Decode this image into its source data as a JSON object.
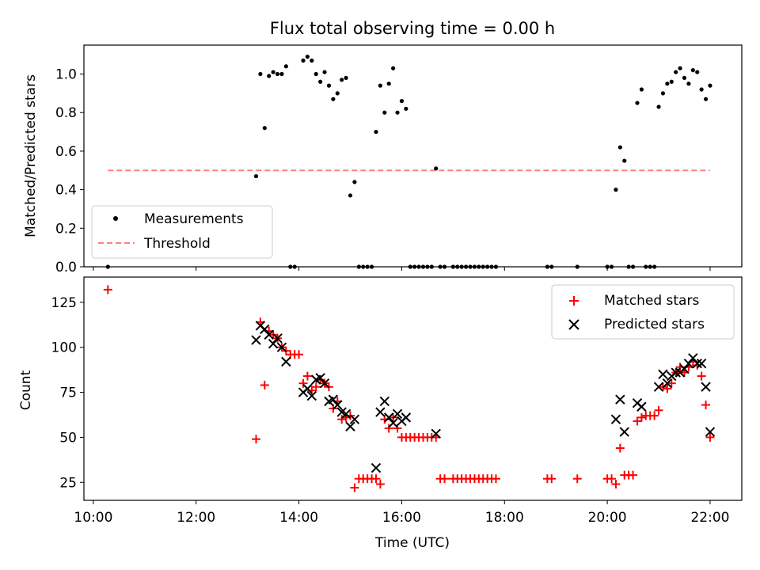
{
  "chart_data": [
    {
      "type": "scatter",
      "title": "Flux total observing time = 0.00 h",
      "xlabel": "",
      "ylabel": "Matched/Predicted stars",
      "xlim": [
        "09:49",
        "22:37"
      ],
      "ylim": [
        0,
        1.15
      ],
      "yticks": [
        "0.0",
        "0.2",
        "0.4",
        "0.6",
        "0.8",
        "1.0"
      ],
      "legend": {
        "placement": "lower-left",
        "entries": [
          "Measurements",
          "Threshold"
        ]
      },
      "series": [
        {
          "name": "Measurements",
          "marker": "dot",
          "color": "#000000",
          "points": [
            [
              "10:17",
              0
            ],
            [
              "13:10",
              0.47
            ],
            [
              "13:15",
              1.0
            ],
            [
              "13:20",
              0.72
            ],
            [
              "13:25",
              0.99
            ],
            [
              "13:30",
              1.01
            ],
            [
              "13:35",
              1.0
            ],
            [
              "13:40",
              1.0
            ],
            [
              "13:45",
              1.04
            ],
            [
              "13:50",
              0
            ],
            [
              "13:55",
              0
            ],
            [
              "14:05",
              1.07
            ],
            [
              "14:10",
              1.09
            ],
            [
              "14:15",
              1.07
            ],
            [
              "14:20",
              1.0
            ],
            [
              "14:25",
              0.96
            ],
            [
              "14:30",
              1.01
            ],
            [
              "14:35",
              0.94
            ],
            [
              "14:40",
              0.87
            ],
            [
              "14:45",
              0.9
            ],
            [
              "14:50",
              0.97
            ],
            [
              "14:55",
              0.98
            ],
            [
              "15:00",
              0.37
            ],
            [
              "15:05",
              0.44
            ],
            [
              "15:10",
              0
            ],
            [
              "15:15",
              0
            ],
            [
              "15:20",
              0
            ],
            [
              "15:25",
              0
            ],
            [
              "15:30",
              0.7
            ],
            [
              "15:35",
              0.94
            ],
            [
              "15:40",
              0.8
            ],
            [
              "15:45",
              0.95
            ],
            [
              "15:50",
              1.03
            ],
            [
              "15:55",
              0.8
            ],
            [
              "16:00",
              0.86
            ],
            [
              "16:05",
              0.82
            ],
            [
              "16:10",
              0
            ],
            [
              "16:15",
              0
            ],
            [
              "16:20",
              0
            ],
            [
              "16:25",
              0
            ],
            [
              "16:30",
              0
            ],
            [
              "16:35",
              0
            ],
            [
              "16:40",
              0.51
            ],
            [
              "16:45",
              0
            ],
            [
              "16:50",
              0
            ],
            [
              "17:00",
              0
            ],
            [
              "17:05",
              0
            ],
            [
              "17:10",
              0
            ],
            [
              "17:15",
              0
            ],
            [
              "17:20",
              0
            ],
            [
              "17:25",
              0
            ],
            [
              "17:30",
              0
            ],
            [
              "17:35",
              0
            ],
            [
              "17:40",
              0
            ],
            [
              "17:45",
              0
            ],
            [
              "17:50",
              0
            ],
            [
              "18:50",
              0
            ],
            [
              "18:55",
              0
            ],
            [
              "19:25",
              0
            ],
            [
              "20:00",
              0
            ],
            [
              "20:05",
              0
            ],
            [
              "20:10",
              0.4
            ],
            [
              "20:15",
              0.62
            ],
            [
              "20:20",
              0.55
            ],
            [
              "20:25",
              0
            ],
            [
              "20:30",
              0
            ],
            [
              "20:35",
              0.85
            ],
            [
              "20:40",
              0.92
            ],
            [
              "20:45",
              0
            ],
            [
              "20:50",
              0
            ],
            [
              "20:55",
              0
            ],
            [
              "21:00",
              0.83
            ],
            [
              "21:05",
              0.9
            ],
            [
              "21:10",
              0.95
            ],
            [
              "21:15",
              0.96
            ],
            [
              "21:20",
              1.01
            ],
            [
              "21:25",
              1.03
            ],
            [
              "21:30",
              0.98
            ],
            [
              "21:35",
              0.95
            ],
            [
              "21:40",
              1.02
            ],
            [
              "21:45",
              1.01
            ],
            [
              "21:50",
              0.92
            ],
            [
              "21:55",
              0.87
            ],
            [
              "22:00",
              0.94
            ]
          ]
        },
        {
          "name": "Threshold",
          "marker": "dashed-line",
          "color": "#ff7f7f",
          "points": [
            [
              "10:17",
              0.5
            ],
            [
              "22:00",
              0.5
            ]
          ]
        }
      ]
    },
    {
      "type": "scatter",
      "title": "",
      "xlabel": "Time (UTC)",
      "ylabel": "Count",
      "xlim": [
        "09:49",
        "22:37"
      ],
      "ylim": [
        15,
        139
      ],
      "xticks": [
        "10:00",
        "12:00",
        "14:00",
        "16:00",
        "18:00",
        "20:00",
        "22:00"
      ],
      "yticks": [
        "25",
        "50",
        "75",
        "100",
        "125"
      ],
      "legend": {
        "placement": "top-right",
        "entries": [
          "Matched stars",
          "Predicted stars"
        ]
      },
      "series": [
        {
          "name": "Matched stars",
          "marker": "plus",
          "color": "#ff0000",
          "points": [
            [
              "10:17",
              132
            ],
            [
              "13:10",
              49
            ],
            [
              "13:15",
              114
            ],
            [
              "13:20",
              79
            ],
            [
              "13:25",
              109
            ],
            [
              "13:30",
              107
            ],
            [
              "13:35",
              105
            ],
            [
              "13:40",
              100
            ],
            [
              "13:45",
              98
            ],
            [
              "13:50",
              96
            ],
            [
              "13:55",
              96
            ],
            [
              "14:00",
              96
            ],
            [
              "14:05",
              80
            ],
            [
              "14:10",
              84
            ],
            [
              "14:15",
              76
            ],
            [
              "14:20",
              78
            ],
            [
              "14:25",
              82
            ],
            [
              "14:30",
              80
            ],
            [
              "14:35",
              78
            ],
            [
              "14:40",
              66
            ],
            [
              "14:45",
              70
            ],
            [
              "14:50",
              60
            ],
            [
              "14:55",
              61
            ],
            [
              "15:00",
              62
            ],
            [
              "15:05",
              22
            ],
            [
              "15:10",
              27
            ],
            [
              "15:15",
              27
            ],
            [
              "15:20",
              27
            ],
            [
              "15:25",
              27
            ],
            [
              "15:30",
              27
            ],
            [
              "15:35",
              24
            ],
            [
              "15:40",
              60
            ],
            [
              "15:45",
              55
            ],
            [
              "15:50",
              61
            ],
            [
              "15:55",
              55
            ],
            [
              "16:00",
              50
            ],
            [
              "16:05",
              50
            ],
            [
              "16:10",
              50
            ],
            [
              "16:15",
              50
            ],
            [
              "16:20",
              50
            ],
            [
              "16:25",
              50
            ],
            [
              "16:30",
              50
            ],
            [
              "16:35",
              50
            ],
            [
              "16:40",
              50
            ],
            [
              "16:45",
              27
            ],
            [
              "16:50",
              27
            ],
            [
              "17:00",
              27
            ],
            [
              "17:05",
              27
            ],
            [
              "17:10",
              27
            ],
            [
              "17:15",
              27
            ],
            [
              "17:20",
              27
            ],
            [
              "17:25",
              27
            ],
            [
              "17:30",
              27
            ],
            [
              "17:35",
              27
            ],
            [
              "17:40",
              27
            ],
            [
              "17:45",
              27
            ],
            [
              "17:50",
              27
            ],
            [
              "18:50",
              27
            ],
            [
              "18:55",
              27
            ],
            [
              "19:25",
              27
            ],
            [
              "20:00",
              27
            ],
            [
              "20:05",
              27
            ],
            [
              "20:10",
              24
            ],
            [
              "20:15",
              44
            ],
            [
              "20:20",
              29
            ],
            [
              "20:25",
              29
            ],
            [
              "20:30",
              29
            ],
            [
              "20:35",
              59
            ],
            [
              "20:40",
              61
            ],
            [
              "20:45",
              62
            ],
            [
              "20:50",
              62
            ],
            [
              "20:55",
              62
            ],
            [
              "21:00",
              65
            ],
            [
              "21:05",
              78
            ],
            [
              "21:10",
              77
            ],
            [
              "21:15",
              80
            ],
            [
              "21:20",
              86
            ],
            [
              "21:25",
              89
            ],
            [
              "21:30",
              86
            ],
            [
              "21:35",
              89
            ],
            [
              "21:40",
              92
            ],
            [
              "21:45",
              90
            ],
            [
              "21:50",
              84
            ],
            [
              "21:55",
              68
            ],
            [
              "22:00",
              50
            ]
          ]
        },
        {
          "name": "Predicted stars",
          "marker": "x",
          "color": "#000000",
          "points": [
            [
              "13:10",
              104
            ],
            [
              "13:15",
              112
            ],
            [
              "13:20",
              110
            ],
            [
              "13:25",
              107
            ],
            [
              "13:30",
              102
            ],
            [
              "13:35",
              105
            ],
            [
              "13:40",
              100
            ],
            [
              "13:45",
              92
            ],
            [
              "14:05",
              75
            ],
            [
              "14:10",
              77
            ],
            [
              "14:15",
              73
            ],
            [
              "14:20",
              82
            ],
            [
              "14:25",
              83
            ],
            [
              "14:30",
              80
            ],
            [
              "14:35",
              70
            ],
            [
              "14:40",
              71
            ],
            [
              "14:45",
              68
            ],
            [
              "14:50",
              64
            ],
            [
              "14:55",
              63
            ],
            [
              "15:00",
              56
            ],
            [
              "15:05",
              60
            ],
            [
              "15:30",
              33
            ],
            [
              "15:35",
              64
            ],
            [
              "15:40",
              70
            ],
            [
              "15:45",
              61
            ],
            [
              "15:50",
              58
            ],
            [
              "15:55",
              63
            ],
            [
              "16:00",
              59
            ],
            [
              "16:05",
              61
            ],
            [
              "16:40",
              52
            ],
            [
              "20:10",
              60
            ],
            [
              "20:15",
              71
            ],
            [
              "20:20",
              53
            ],
            [
              "20:35",
              69
            ],
            [
              "20:40",
              67
            ],
            [
              "21:00",
              78
            ],
            [
              "21:05",
              85
            ],
            [
              "21:10",
              80
            ],
            [
              "21:15",
              84
            ],
            [
              "21:20",
              86
            ],
            [
              "21:25",
              86
            ],
            [
              "21:30",
              88
            ],
            [
              "21:35",
              91
            ],
            [
              "21:40",
              94
            ],
            [
              "21:45",
              91
            ],
            [
              "21:50",
              91
            ],
            [
              "21:55",
              78
            ],
            [
              "22:00",
              53
            ]
          ]
        }
      ]
    }
  ]
}
